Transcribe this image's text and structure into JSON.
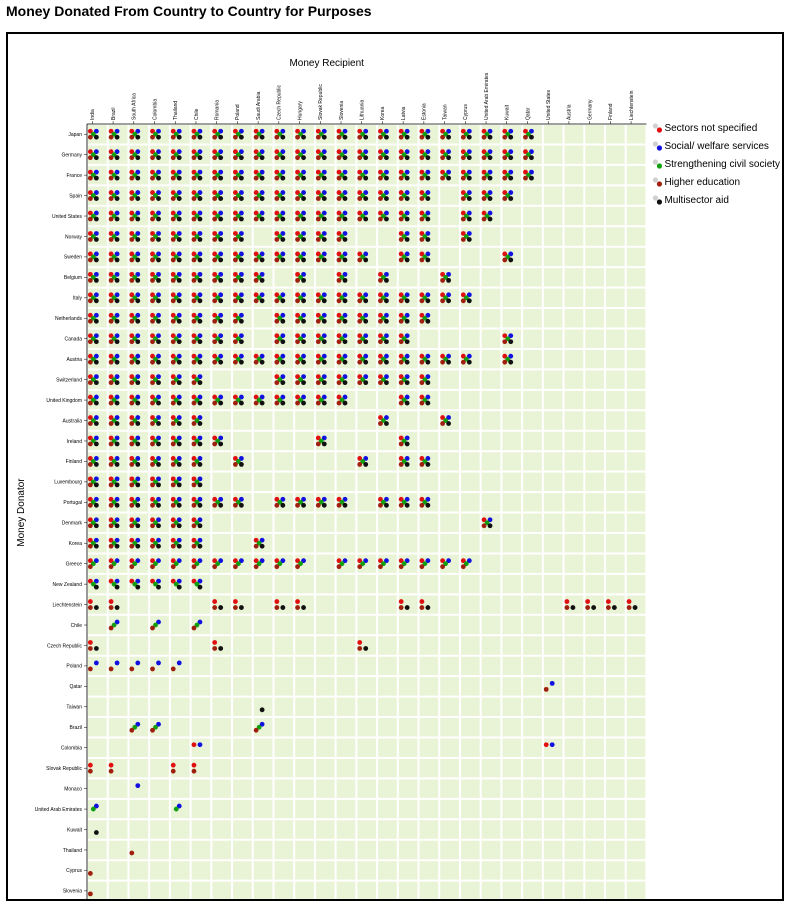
{
  "chart_data": {
    "type": "scatter",
    "title": "Money Donated From Country to Country for Purposes",
    "xlabel": "Money Recipient",
    "ylabel": "Money Donator",
    "grid": true,
    "legend_position": "top-right",
    "background_color": "#e9f3d5",
    "gridline_color": "#ffffff",
    "recipients": [
      "India",
      "Brazil",
      "South Africa",
      "Colombia",
      "Thailand",
      "Chile",
      "Romania",
      "Poland",
      "Saudi Arabia",
      "Czech Republic",
      "Hungary",
      "Slovak Republic",
      "Slovenia",
      "Lithuania",
      "Korea",
      "Latvia",
      "Estonia",
      "Taiwan",
      "Cyprus",
      "United Arab Emirates",
      "Kuwait",
      "Qatar",
      "United States",
      "Austria",
      "Germany",
      "Finland",
      "Liechtenstein"
    ],
    "donors": [
      "Japan",
      "Germany",
      "France",
      "Spain",
      "United States",
      "Norway",
      "Sweden",
      "Belgium",
      "Italy",
      "Netherlands",
      "Canada",
      "Austria",
      "Switzerland",
      "United Kingdom",
      "Australia",
      "Ireland",
      "Finland",
      "Luxembourg",
      "Portugal",
      "Denmark",
      "Korea",
      "Greece",
      "New Zealand",
      "Liechtenstein",
      "Chile",
      "Czech Republic",
      "Poland",
      "Qatar",
      "Taiwan",
      "Brazil",
      "Colombia",
      "Slovak Republic",
      "Monaco",
      "United Arab Emirates",
      "Kuwait",
      "Thailand",
      "Cyprus",
      "Slovenia"
    ],
    "purposes": [
      {
        "name": "Sectors not specified",
        "color": "#e01010"
      },
      {
        "name": "Social/ welfare services",
        "color": "#1010e0"
      },
      {
        "name": "Strengthening civil society",
        "color": "#10a010"
      },
      {
        "name": "Higher education",
        "color": "#a02010"
      },
      {
        "name": "Multisector aid",
        "color": "#101010"
      }
    ],
    "flows": {
      "Japan": {
        "India": "01234",
        "Brazil": "01234",
        "South Africa": "01234",
        "Colombia": "01234",
        "Thailand": "01234",
        "Chile": "01234",
        "Romania": "01234",
        "Poland": "01234",
        "Saudi Arabia": "01234",
        "Czech Republic": "01234",
        "Hungary": "01234",
        "Slovak Republic": "01234",
        "Slovenia": "01234",
        "Lithuania": "01234",
        "Korea": "01234",
        "Latvia": "01234",
        "Estonia": "01234",
        "Taiwan": "01234",
        "Cyprus": "01234",
        "United Arab Emirates": "01234",
        "Kuwait": "01234",
        "Qatar": "01234"
      },
      "Germany": {
        "India": "01234",
        "Brazil": "01234",
        "South Africa": "01234",
        "Colombia": "01234",
        "Thailand": "01234",
        "Chile": "01234",
        "Romania": "01234",
        "Poland": "01234",
        "Saudi Arabia": "01234",
        "Czech Republic": "01234",
        "Hungary": "01234",
        "Slovak Republic": "01234",
        "Slovenia": "01234",
        "Lithuania": "01234",
        "Korea": "01234",
        "Latvia": "01234",
        "Estonia": "01234",
        "Taiwan": "01234",
        "Cyprus": "01234",
        "United Arab Emirates": "01234",
        "Kuwait": "01234",
        "Qatar": "01234"
      },
      "France": {
        "India": "01234",
        "Brazil": "01234",
        "South Africa": "01234",
        "Colombia": "01234",
        "Thailand": "01234",
        "Chile": "01234",
        "Romania": "01234",
        "Poland": "01234",
        "Saudi Arabia": "01234",
        "Czech Republic": "01234",
        "Hungary": "01234",
        "Slovak Republic": "01234",
        "Slovenia": "01234",
        "Lithuania": "01234",
        "Korea": "01234",
        "Latvia": "01234",
        "Estonia": "01234",
        "Taiwan": "01234",
        "Cyprus": "01234",
        "United Arab Emirates": "01234",
        "Kuwait": "01234",
        "Qatar": "01234"
      },
      "Spain": {
        "India": "01234",
        "Brazil": "01234",
        "South Africa": "01234",
        "Colombia": "01234",
        "Thailand": "01234",
        "Chile": "01234",
        "Romania": "01234",
        "Poland": "01234",
        "Saudi Arabia": "01234",
        "Czech Republic": "01234",
        "Hungary": "01234",
        "Slovak Republic": "01234",
        "Slovenia": "01234",
        "Lithuania": "01234",
        "Korea": "01234",
        "Latvia": "01234",
        "Estonia": "01234",
        "Cyprus": "01234",
        "United Arab Emirates": "01234",
        "Kuwait": "01234"
      },
      "United States": {
        "India": "01234",
        "Brazil": "01234",
        "South Africa": "01234",
        "Colombia": "01234",
        "Thailand": "01234",
        "Chile": "01234",
        "Romania": "01234",
        "Poland": "01234",
        "Saudi Arabia": "01234",
        "Czech Republic": "01234",
        "Hungary": "01234",
        "Slovak Republic": "01234",
        "Slovenia": "01234",
        "Lithuania": "01234",
        "Korea": "01234",
        "Latvia": "01234",
        "Estonia": "01234",
        "Cyprus": "01234",
        "United Arab Emirates": "01234"
      },
      "Norway": {
        "India": "01234",
        "Brazil": "01234",
        "South Africa": "01234",
        "Colombia": "01234",
        "Thailand": "01234",
        "Chile": "01234",
        "Romania": "01234",
        "Poland": "01234",
        "Czech Republic": "01234",
        "Hungary": "01234",
        "Slovak Republic": "01234",
        "Slovenia": "01234",
        "Latvia": "01234",
        "Estonia": "01234",
        "Cyprus": "01234"
      },
      "Sweden": {
        "India": "01234",
        "Brazil": "01234",
        "South Africa": "01234",
        "Colombia": "01234",
        "Thailand": "01234",
        "Chile": "01234",
        "Romania": "01234",
        "Poland": "01234",
        "Saudi Arabia": "01234",
        "Czech Republic": "01234",
        "Hungary": "01234",
        "Slovak Republic": "01234",
        "Slovenia": "01234",
        "Lithuania": "01234",
        "Latvia": "01234",
        "Estonia": "01234",
        "Kuwait": "01234"
      },
      "Belgium": {
        "India": "01234",
        "Brazil": "01234",
        "South Africa": "01234",
        "Colombia": "01234",
        "Thailand": "01234",
        "Chile": "01234",
        "Romania": "01234",
        "Poland": "01234",
        "Saudi Arabia": "01234",
        "Hungary": "01234",
        "Slovenia": "01234",
        "Korea": "01234",
        "Taiwan": "01234"
      },
      "Italy": {
        "India": "01234",
        "Brazil": "01234",
        "South Africa": "01234",
        "Colombia": "01234",
        "Thailand": "01234",
        "Chile": "01234",
        "Romania": "01234",
        "Poland": "01234",
        "Saudi Arabia": "01234",
        "Czech Republic": "01234",
        "Hungary": "01234",
        "Slovak Republic": "01234",
        "Slovenia": "01234",
        "Lithuania": "01234",
        "Korea": "01234",
        "Latvia": "01234",
        "Estonia": "01234",
        "Taiwan": "01234",
        "Cyprus": "01234"
      },
      "Netherlands": {
        "India": "01234",
        "Brazil": "01234",
        "South Africa": "01234",
        "Colombia": "01234",
        "Thailand": "01234",
        "Chile": "01234",
        "Romania": "01234",
        "Poland": "01234",
        "Czech Republic": "01234",
        "Hungary": "01234",
        "Slovak Republic": "01234",
        "Slovenia": "01234",
        "Lithuania": "01234",
        "Korea": "01234",
        "Latvia": "01234",
        "Estonia": "01234"
      },
      "Canada": {
        "India": "01234",
        "Brazil": "01234",
        "South Africa": "01234",
        "Colombia": "01234",
        "Thailand": "01234",
        "Chile": "01234",
        "Romania": "01234",
        "Poland": "01234",
        "Czech Republic": "01234",
        "Hungary": "01234",
        "Slovak Republic": "01234",
        "Slovenia": "01234",
        "Lithuania": "01234",
        "Korea": "01234",
        "Latvia": "01234",
        "Kuwait": "01234"
      },
      "Austria": {
        "India": "01234",
        "Brazil": "01234",
        "South Africa": "01234",
        "Colombia": "01234",
        "Thailand": "01234",
        "Chile": "01234",
        "Romania": "01234",
        "Poland": "01234",
        "Saudi Arabia": "01234",
        "Czech Republic": "01234",
        "Hungary": "01234",
        "Slovak Republic": "01234",
        "Slovenia": "01234",
        "Lithuania": "01234",
        "Korea": "01234",
        "Latvia": "01234",
        "Estonia": "01234",
        "Taiwan": "01234",
        "Cyprus": "01234",
        "Kuwait": "01234"
      },
      "Switzerland": {
        "India": "01234",
        "Brazil": "01234",
        "South Africa": "01234",
        "Colombia": "01234",
        "Thailand": "01234",
        "Chile": "01234",
        "Czech Republic": "01234",
        "Hungary": "01234",
        "Slovak Republic": "01234",
        "Slovenia": "01234",
        "Lithuania": "01234",
        "Korea": "01234",
        "Latvia": "01234",
        "Estonia": "01234"
      },
      "United Kingdom": {
        "India": "01234",
        "Brazil": "01234",
        "South Africa": "01234",
        "Colombia": "01234",
        "Thailand": "01234",
        "Chile": "01234",
        "Romania": "01234",
        "Poland": "01234",
        "Saudi Arabia": "01234",
        "Czech Republic": "01234",
        "Hungary": "01234",
        "Slovak Republic": "01234",
        "Slovenia": "01234",
        "Latvia": "01234",
        "Estonia": "01234"
      },
      "Australia": {
        "India": "01234",
        "Brazil": "01234",
        "South Africa": "01234",
        "Colombia": "01234",
        "Thailand": "01234",
        "Chile": "01234",
        "Korea": "01234",
        "Taiwan": "01234"
      },
      "Ireland": {
        "India": "01234",
        "Brazil": "01234",
        "South Africa": "01234",
        "Colombia": "01234",
        "Thailand": "01234",
        "Chile": "01234",
        "Romania": "01234",
        "Slovak Republic": "01234",
        "Latvia": "01234"
      },
      "Finland": {
        "India": "01234",
        "Brazil": "01234",
        "South Africa": "01234",
        "Colombia": "01234",
        "Thailand": "01234",
        "Chile": "01234",
        "Poland": "01234",
        "Lithuania": "01234",
        "Latvia": "01234",
        "Estonia": "01234"
      },
      "Luxembourg": {
        "India": "01234",
        "Brazil": "01234",
        "South Africa": "01234",
        "Colombia": "01234",
        "Thailand": "01234",
        "Chile": "01234"
      },
      "Portugal": {
        "India": "01234",
        "Brazil": "01234",
        "South Africa": "01234",
        "Colombia": "01234",
        "Thailand": "01234",
        "Chile": "01234",
        "Romania": "01234",
        "Poland": "01234",
        "Czech Republic": "01234",
        "Hungary": "01234",
        "Slovak Republic": "01234",
        "Slovenia": "01234",
        "Korea": "01234",
        "Latvia": "01234",
        "Estonia": "01234"
      },
      "Denmark": {
        "India": "01234",
        "Brazil": "01234",
        "South Africa": "01234",
        "Colombia": "01234",
        "Thailand": "01234",
        "Chile": "01234",
        "United Arab Emirates": "01234"
      },
      "Korea": {
        "India": "01234",
        "Brazil": "01234",
        "South Africa": "01234",
        "Colombia": "01234",
        "Thailand": "01234",
        "Chile": "01234",
        "Saudi Arabia": "01234"
      },
      "Greece": {
        "India": "0123",
        "Brazil": "0123",
        "South Africa": "0123",
        "Colombia": "0123",
        "Thailand": "0123",
        "Chile": "0123",
        "Romania": "0123",
        "Poland": "0123",
        "Saudi Arabia": "0123",
        "Czech Republic": "0123",
        "Hungary": "0123",
        "Slovenia": "0123",
        "Lithuania": "0123",
        "Korea": "0123",
        "Latvia": "0123",
        "Estonia": "0123",
        "Taiwan": "0123",
        "Cyprus": "0123"
      },
      "New Zealand": {
        "India": "0124",
        "Brazil": "0124",
        "South Africa": "0124",
        "Colombia": "0124",
        "Thailand": "0124",
        "Chile": "0124"
      },
      "Liechtenstein": {
        "India": "034",
        "Brazil": "034",
        "Romania": "034",
        "Poland": "034",
        "Czech Republic": "034",
        "Hungary": "034",
        "Latvia": "034",
        "Estonia": "034",
        "Austria": "034",
        "Germany": "034",
        "Finland": "034",
        "Liechtenstein": "034"
      },
      "Chile": {
        "Brazil": "123",
        "Colombia": "123",
        "Chile": "123"
      },
      "Czech Republic": {
        "India": "034",
        "Romania": "034",
        "Lithuania": "034"
      },
      "Poland": {
        "India": "13",
        "Brazil": "13",
        "South Africa": "13",
        "Colombia": "13",
        "Thailand": "13"
      },
      "Qatar": {
        "United States": "13"
      },
      "Taiwan": {
        "Saudi Arabia": "4"
      },
      "Brazil": {
        "South Africa": "123",
        "Colombia": "123",
        "Saudi Arabia": "123"
      },
      "Colombia": {
        "Chile": "01",
        "United States": "01"
      },
      "Slovak Republic": {
        "India": "03",
        "Brazil": "03",
        "Thailand": "03",
        "Chile": "03"
      },
      "Monaco": {
        "South Africa": "1"
      },
      "United Arab Emirates": {
        "India": "12",
        "Thailand": "12"
      },
      "Kuwait": {
        "India": "4"
      },
      "Thailand": {
        "South Africa": "3"
      },
      "Cyprus": {
        "India": "3"
      },
      "Slovenia": {
        "India": "3"
      }
    }
  }
}
